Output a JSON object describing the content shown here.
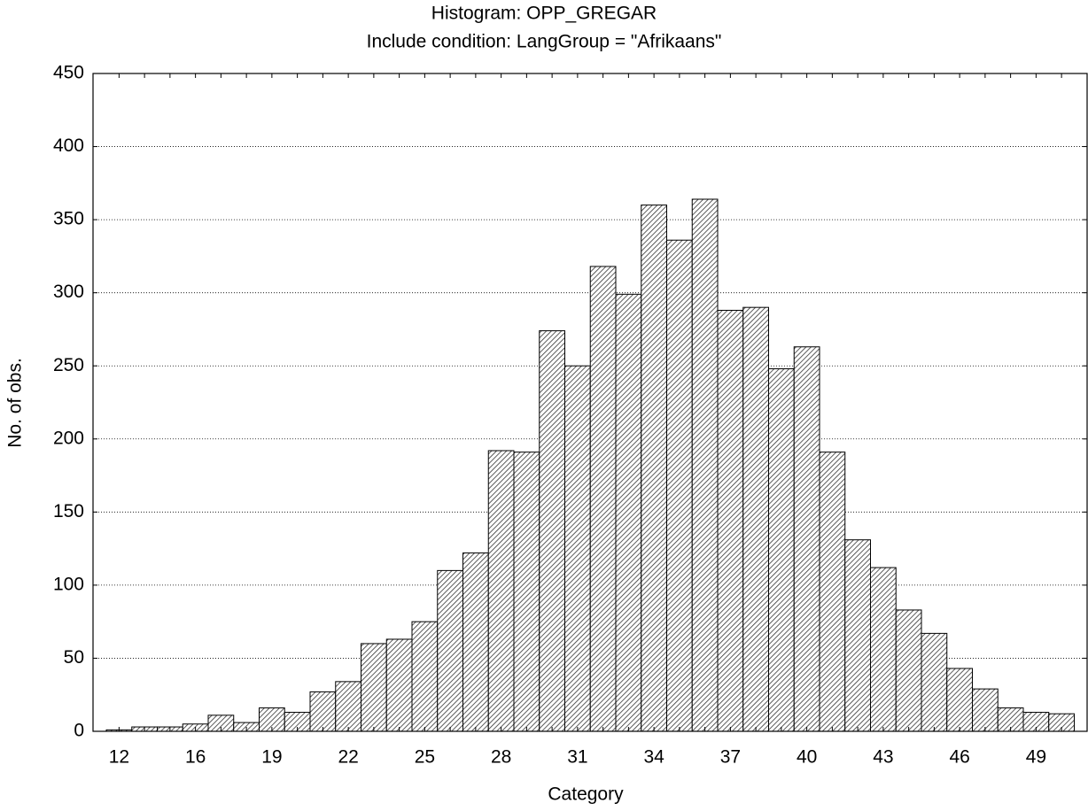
{
  "chart_data": {
    "type": "bar",
    "title": "Histogram: OPP_GREGAR",
    "subtitle": "Include condition: LangGroup = \"Afrikaans\"",
    "x_label": "Category",
    "y_label": "No. of obs.",
    "categories": [
      "12",
      null,
      null,
      "16",
      null,
      null,
      "19",
      null,
      null,
      "22",
      null,
      null,
      "25",
      null,
      null,
      "28",
      null,
      null,
      "31",
      null,
      null,
      "34",
      null,
      null,
      "37",
      null,
      null,
      "40",
      null,
      null,
      "43",
      null,
      null,
      "46",
      null,
      null,
      "49",
      null
    ],
    "values": [
      1,
      3,
      3,
      5,
      11,
      6,
      16,
      13,
      27,
      34,
      60,
      63,
      75,
      110,
      122,
      192,
      191,
      274,
      250,
      318,
      299,
      360,
      336,
      364,
      288,
      290,
      248,
      263,
      191,
      131,
      112,
      83,
      67,
      43,
      29,
      16,
      13,
      12
    ],
    "ylim": [
      0,
      450
    ],
    "yticks": [
      0,
      50,
      100,
      150,
      200,
      250,
      300,
      350,
      400,
      450
    ],
    "grid": true
  }
}
